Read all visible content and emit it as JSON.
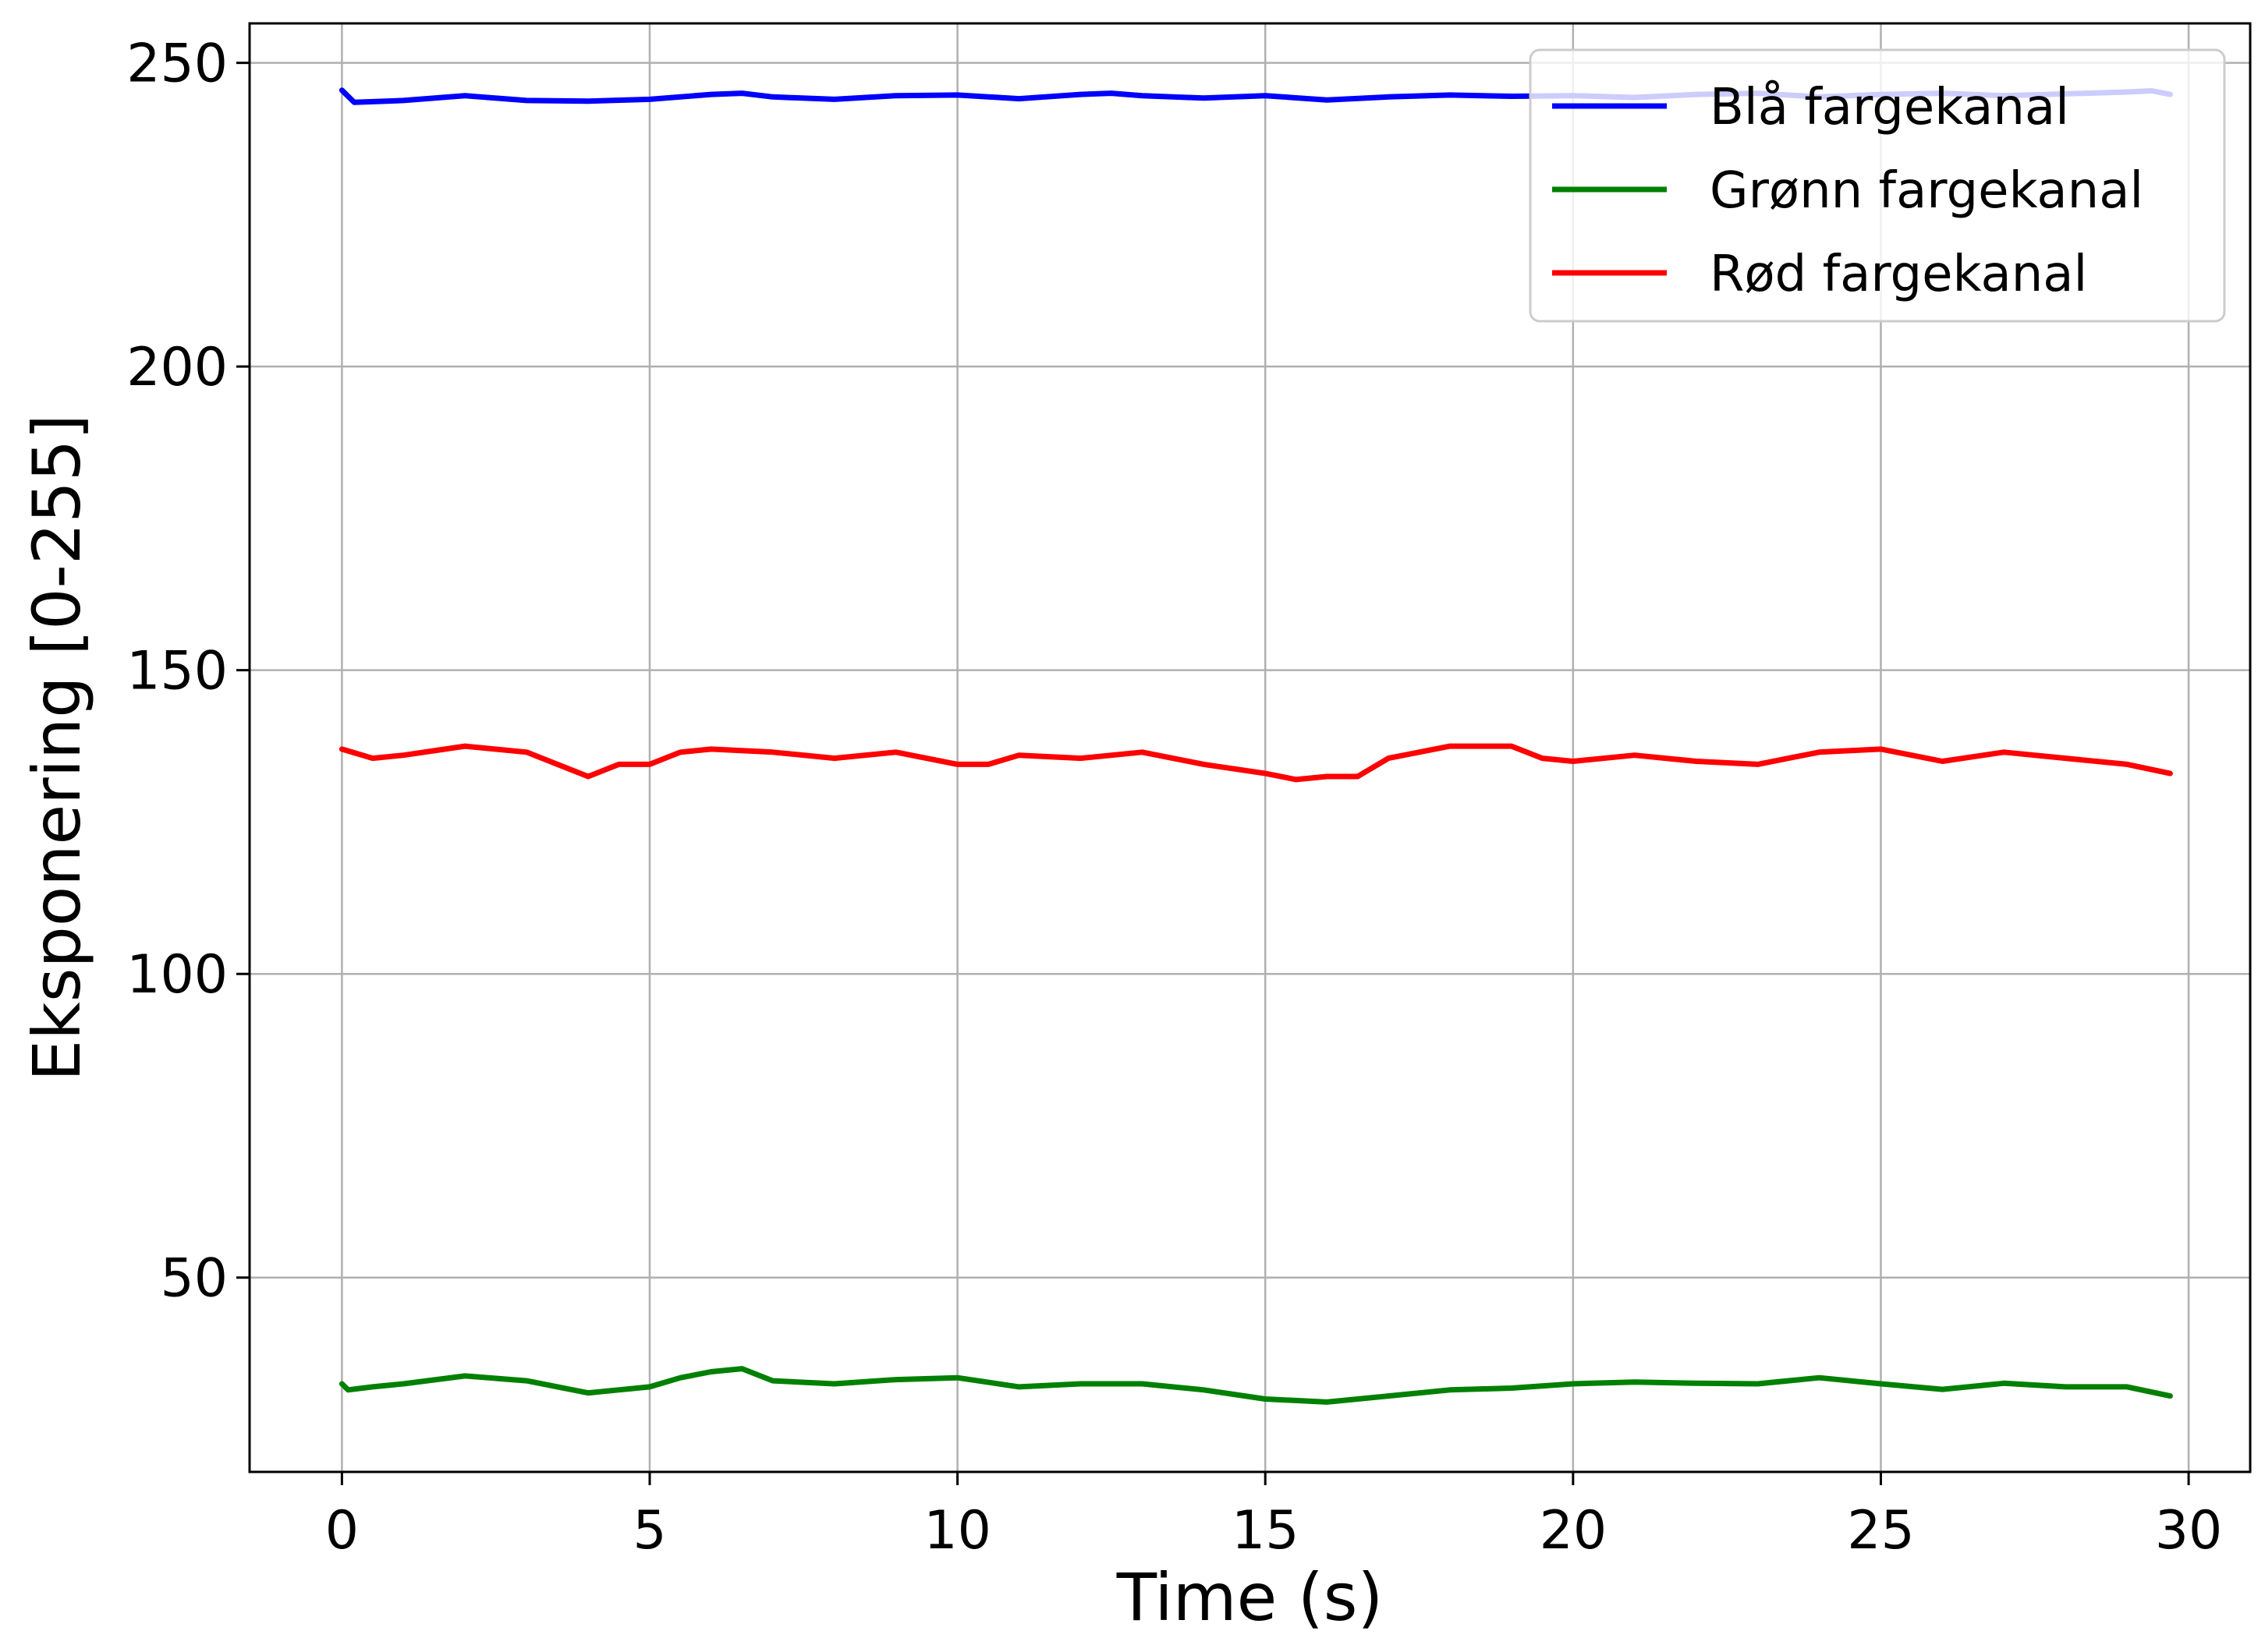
{
  "chart_data": {
    "type": "line",
    "title": "",
    "xlabel": "Time (s)",
    "ylabel": "Eksponering [0-255]",
    "xlim": [
      -1.5,
      31.0
    ],
    "ylim": [
      18,
      256.5
    ],
    "xticks": [
      0,
      5,
      10,
      15,
      20,
      25,
      30
    ],
    "yticks": [
      50,
      100,
      150,
      200,
      250
    ],
    "grid": true,
    "legend_position": "top-right",
    "series": [
      {
        "name": "Blå fargekanal",
        "color": "#0000ff",
        "x": [
          0,
          0.2,
          1,
          2,
          3,
          4,
          5,
          6,
          6.5,
          7,
          8,
          9,
          10,
          11,
          12,
          12.5,
          13,
          14,
          15,
          16,
          17,
          18,
          19,
          20,
          21,
          22,
          23,
          24,
          25,
          26,
          27,
          28,
          29,
          29.4,
          29.7
        ],
        "values": [
          245.5,
          243.5,
          243.8,
          244.6,
          243.8,
          243.7,
          244.0,
          244.8,
          245.0,
          244.4,
          244.0,
          244.6,
          244.7,
          244.1,
          244.8,
          245.0,
          244.6,
          244.2,
          244.6,
          243.9,
          244.4,
          244.7,
          244.5,
          244.6,
          244.3,
          244.8,
          245.0,
          244.4,
          244.8,
          245.0,
          244.6,
          244.9,
          245.2,
          245.4,
          244.8
        ]
      },
      {
        "name": "Grønn fargekanal",
        "color": "#008000",
        "x": [
          0,
          0.1,
          0.5,
          1,
          2,
          3,
          4,
          5,
          5.5,
          6,
          6.5,
          7,
          8,
          9,
          10,
          11,
          12,
          13,
          14,
          15,
          16,
          17,
          18,
          19,
          20,
          21,
          22,
          23,
          24,
          25,
          26,
          27,
          28,
          29,
          29.7
        ],
        "values": [
          32.5,
          31.5,
          32.0,
          32.5,
          33.8,
          33.0,
          31.0,
          32.0,
          33.5,
          34.5,
          35.0,
          33.0,
          32.5,
          33.2,
          33.5,
          32.0,
          32.5,
          32.5,
          31.5,
          30.0,
          29.5,
          30.5,
          31.5,
          31.8,
          32.5,
          32.8,
          32.6,
          32.5,
          33.5,
          32.5,
          31.6,
          32.6,
          32.0,
          32.0,
          30.5
        ]
      },
      {
        "name": "Rød fargekanal",
        "color": "#ff0000",
        "x": [
          0,
          0.5,
          1,
          2,
          3,
          3.5,
          4,
          4.5,
          5,
          5.5,
          6,
          7,
          8,
          9,
          10,
          10.5,
          11,
          12,
          13,
          14,
          15,
          15.5,
          16,
          16.5,
          17,
          18,
          19,
          19.5,
          20,
          21,
          22,
          23,
          24,
          25,
          26,
          27,
          28,
          29,
          29.7
        ],
        "values": [
          137.0,
          135.5,
          136.0,
          137.5,
          136.5,
          134.5,
          132.5,
          134.5,
          134.5,
          136.5,
          137.0,
          136.5,
          135.5,
          136.5,
          134.5,
          134.5,
          136.0,
          135.5,
          136.5,
          134.5,
          133.0,
          132.0,
          132.5,
          132.5,
          135.5,
          137.5,
          137.5,
          135.5,
          135.0,
          136.0,
          135.0,
          134.5,
          136.5,
          137.0,
          135.0,
          136.5,
          135.5,
          134.5,
          133.0
        ]
      }
    ]
  }
}
